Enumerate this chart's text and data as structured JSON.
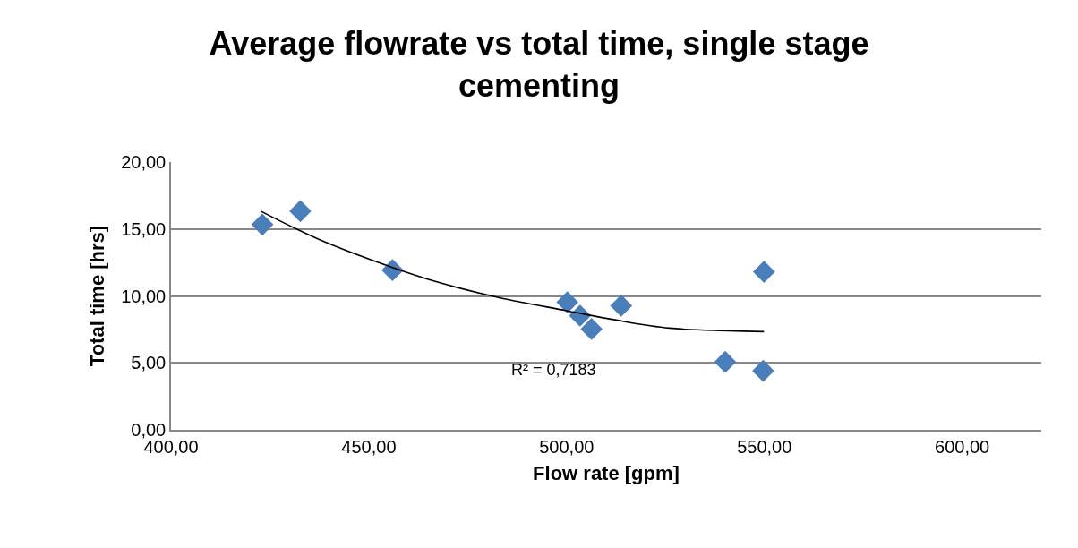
{
  "chart_data": {
    "type": "scatter",
    "title": "Average flowrate vs total time, single stage cementing",
    "xlabel": "Flow rate [gpm]",
    "ylabel": "Total time [hrs]",
    "series": [
      {
        "color": "#4a7ebb",
        "marker": "diamond",
        "x": [
          423.1,
          432.7,
          456.0,
          500.2,
          503.4,
          506.3,
          513.8,
          549.9,
          540.1,
          549.7
        ],
        "values": [
          15.33,
          16.33,
          11.93,
          9.53,
          8.53,
          7.53,
          9.27,
          11.8,
          5.07,
          4.4
        ]
      },
      {
        "type": "line",
        "color": "#000000",
        "marker": "none",
        "line_style": "solid",
        "x": [
          422.7,
          437.6,
          456.0,
          467.8,
          483.0,
          500.0,
          512.5,
          526.0,
          541.0,
          549.9
        ],
        "values": [
          16.33,
          14.2,
          12.13,
          11.0,
          9.87,
          8.9,
          8.2,
          7.6,
          7.4,
          7.33
        ]
      }
    ],
    "annotations": [
      "R² = 0,7183"
    ],
    "xlim": [
      400,
      620
    ],
    "xticks": [
      {
        "value": 400,
        "label": "400,00"
      },
      {
        "value": 450,
        "label": "450,00"
      },
      {
        "value": 500,
        "label": "500,00"
      },
      {
        "value": 550,
        "label": "550,00"
      },
      {
        "value": 600,
        "label": "600,00"
      }
    ],
    "ylim": [
      0,
      20
    ],
    "yticks": [
      {
        "value": 0,
        "label": "0,00"
      },
      {
        "value": 5,
        "label": "5,00"
      },
      {
        "value": 10,
        "label": "10,00"
      },
      {
        "value": 15,
        "label": "15,00"
      },
      {
        "value": 20,
        "label": "20,00"
      }
    ],
    "grid": "y"
  }
}
